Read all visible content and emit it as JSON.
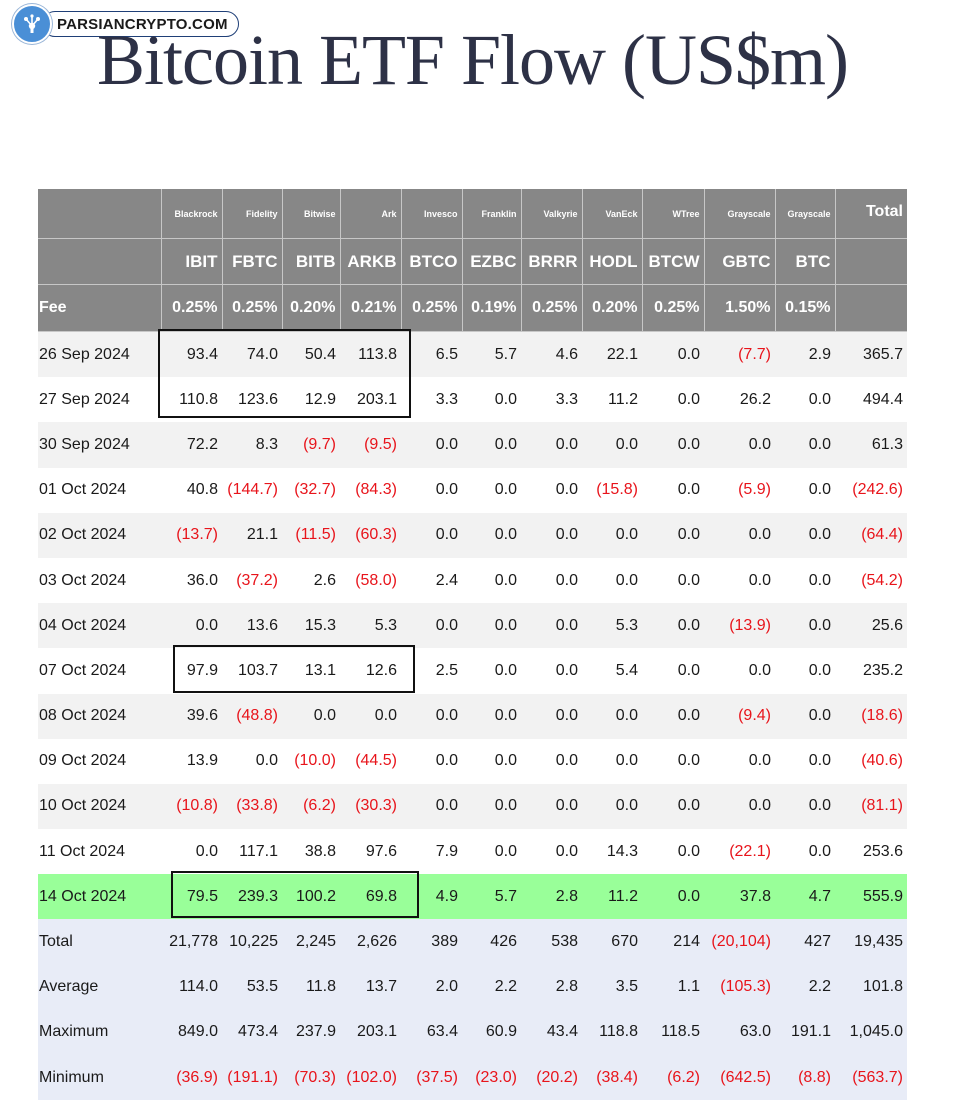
{
  "brand": {
    "logo_text": "PARSIANCRYPTO.COM"
  },
  "title": "Bitcoin ETF Flow (US$m)",
  "table": {
    "issuers": [
      "Blackrock",
      "Fidelity",
      "Bitwise",
      "Ark",
      "Invesco",
      "Franklin",
      "Valkyrie",
      "VanEck",
      "WTree",
      "Grayscale",
      "Grayscale"
    ],
    "total_header": "Total",
    "tickers": [
      "IBIT",
      "FBTC",
      "BITB",
      "ARKB",
      "BTCO",
      "EZBC",
      "BRRR",
      "HODL",
      "BTCW",
      "GBTC",
      "BTC"
    ],
    "fee_label": "Fee",
    "fees": [
      "0.25%",
      "0.25%",
      "0.20%",
      "0.21%",
      "0.25%",
      "0.19%",
      "0.25%",
      "0.20%",
      "0.25%",
      "1.50%",
      "0.15%"
    ],
    "rows": [
      {
        "date": "26 Sep 2024",
        "values": [
          "93.4",
          "74.0",
          "50.4",
          "113.8",
          "6.5",
          "5.7",
          "4.6",
          "22.1",
          "0.0",
          "(7.7)",
          "2.9",
          "365.7"
        ]
      },
      {
        "date": "27 Sep 2024",
        "values": [
          "110.8",
          "123.6",
          "12.9",
          "203.1",
          "3.3",
          "0.0",
          "3.3",
          "11.2",
          "0.0",
          "26.2",
          "0.0",
          "494.4"
        ]
      },
      {
        "date": "30 Sep 2024",
        "values": [
          "72.2",
          "8.3",
          "(9.7)",
          "(9.5)",
          "0.0",
          "0.0",
          "0.0",
          "0.0",
          "0.0",
          "0.0",
          "0.0",
          "61.3"
        ]
      },
      {
        "date": "01 Oct 2024",
        "values": [
          "40.8",
          "(144.7)",
          "(32.7)",
          "(84.3)",
          "0.0",
          "0.0",
          "0.0",
          "(15.8)",
          "0.0",
          "(5.9)",
          "0.0",
          "(242.6)"
        ]
      },
      {
        "date": "02 Oct 2024",
        "values": [
          "(13.7)",
          "21.1",
          "(11.5)",
          "(60.3)",
          "0.0",
          "0.0",
          "0.0",
          "0.0",
          "0.0",
          "0.0",
          "0.0",
          "(64.4)"
        ]
      },
      {
        "date": "03 Oct 2024",
        "values": [
          "36.0",
          "(37.2)",
          "2.6",
          "(58.0)",
          "2.4",
          "0.0",
          "0.0",
          "0.0",
          "0.0",
          "0.0",
          "0.0",
          "(54.2)"
        ]
      },
      {
        "date": "04 Oct 2024",
        "values": [
          "0.0",
          "13.6",
          "15.3",
          "5.3",
          "0.0",
          "0.0",
          "0.0",
          "5.3",
          "0.0",
          "(13.9)",
          "0.0",
          "25.6"
        ]
      },
      {
        "date": "07 Oct 2024",
        "values": [
          "97.9",
          "103.7",
          "13.1",
          "12.6",
          "2.5",
          "0.0",
          "0.0",
          "5.4",
          "0.0",
          "0.0",
          "0.0",
          "235.2"
        ]
      },
      {
        "date": "08 Oct 2024",
        "values": [
          "39.6",
          "(48.8)",
          "0.0",
          "0.0",
          "0.0",
          "0.0",
          "0.0",
          "0.0",
          "0.0",
          "(9.4)",
          "0.0",
          "(18.6)"
        ]
      },
      {
        "date": "09 Oct 2024",
        "values": [
          "13.9",
          "0.0",
          "(10.0)",
          "(44.5)",
          "0.0",
          "0.0",
          "0.0",
          "0.0",
          "0.0",
          "0.0",
          "0.0",
          "(40.6)"
        ]
      },
      {
        "date": "10 Oct 2024",
        "values": [
          "(10.8)",
          "(33.8)",
          "(6.2)",
          "(30.3)",
          "0.0",
          "0.0",
          "0.0",
          "0.0",
          "0.0",
          "0.0",
          "0.0",
          "(81.1)"
        ]
      },
      {
        "date": "11 Oct 2024",
        "values": [
          "0.0",
          "117.1",
          "38.8",
          "97.6",
          "7.9",
          "0.0",
          "0.0",
          "14.3",
          "0.0",
          "(22.1)",
          "0.0",
          "253.6"
        ]
      },
      {
        "date": "14 Oct 2024",
        "highlight": true,
        "values": [
          "79.5",
          "239.3",
          "100.2",
          "69.8",
          "4.9",
          "5.7",
          "2.8",
          "11.2",
          "0.0",
          "37.8",
          "4.7",
          "555.9"
        ]
      }
    ],
    "stats": [
      {
        "label": "Total",
        "values": [
          "21,778",
          "10,225",
          "2,245",
          "2,626",
          "389",
          "426",
          "538",
          "670",
          "214",
          "(20,104)",
          "427",
          "19,435"
        ]
      },
      {
        "label": "Average",
        "values": [
          "114.0",
          "53.5",
          "11.8",
          "13.7",
          "2.0",
          "2.2",
          "2.8",
          "3.5",
          "1.1",
          "(105.3)",
          "2.2",
          "101.8"
        ]
      },
      {
        "label": "Maximum",
        "values": [
          "849.0",
          "473.4",
          "237.9",
          "203.1",
          "63.4",
          "60.9",
          "43.4",
          "118.8",
          "118.5",
          "63.0",
          "191.1",
          "1,045.0"
        ]
      },
      {
        "label": "Minimum",
        "values": [
          "(36.9)",
          "(191.1)",
          "(70.3)",
          "(102.0)",
          "(37.5)",
          "(23.0)",
          "(20.2)",
          "(38.4)",
          "(6.2)",
          "(642.5)",
          "(8.8)",
          "(563.7)"
        ]
      }
    ]
  },
  "colors": {
    "header_bg": "#878787",
    "negative": "#e8141b",
    "highlight_row": "#99ff99",
    "stats_bg": "#e8ecf7"
  }
}
